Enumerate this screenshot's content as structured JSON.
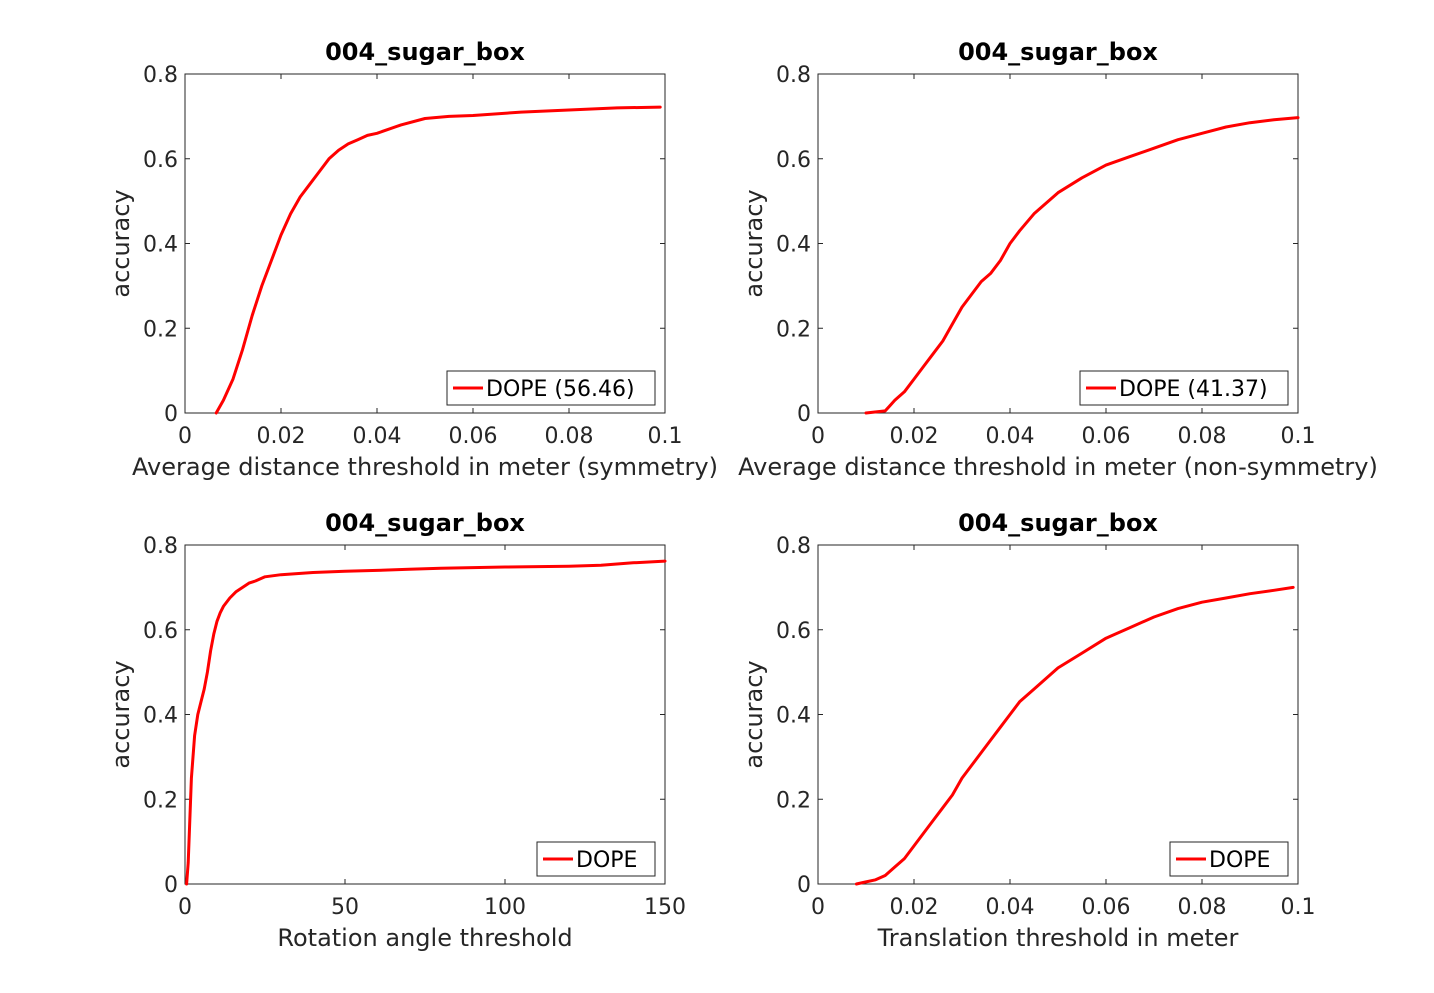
{
  "chart_data": [
    {
      "type": "line",
      "title": "004_sugar_box",
      "xlabel": "Average distance threshold in meter (symmetry)",
      "ylabel": "accuracy",
      "xlim": [
        0,
        0.1
      ],
      "ylim": [
        0,
        0.8
      ],
      "xticks": [
        "0",
        "0.02",
        "0.04",
        "0.06",
        "0.08",
        "0.1"
      ],
      "yticks": [
        "0",
        "0.2",
        "0.4",
        "0.6",
        "0.8"
      ],
      "legend_position": "bottom-right",
      "color": "#ff0000",
      "series": [
        {
          "name": "DOPE (56.46)",
          "x": [
            0.0065,
            0.008,
            0.01,
            0.012,
            0.014,
            0.016,
            0.018,
            0.02,
            0.022,
            0.024,
            0.026,
            0.028,
            0.03,
            0.032,
            0.034,
            0.036,
            0.038,
            0.04,
            0.045,
            0.05,
            0.055,
            0.06,
            0.07,
            0.08,
            0.09,
            0.099
          ],
          "y": [
            0.0,
            0.03,
            0.08,
            0.15,
            0.23,
            0.3,
            0.36,
            0.42,
            0.47,
            0.51,
            0.54,
            0.57,
            0.6,
            0.62,
            0.635,
            0.645,
            0.655,
            0.66,
            0.68,
            0.695,
            0.7,
            0.702,
            0.71,
            0.715,
            0.72,
            0.722
          ]
        }
      ]
    },
    {
      "type": "line",
      "title": "004_sugar_box",
      "xlabel": "Average distance threshold in meter (non-symmetry)",
      "ylabel": "accuracy",
      "xlim": [
        0,
        0.1
      ],
      "ylim": [
        0,
        0.8
      ],
      "xticks": [
        "0",
        "0.02",
        "0.04",
        "0.06",
        "0.08",
        "0.1"
      ],
      "yticks": [
        "0",
        "0.2",
        "0.4",
        "0.6",
        "0.8"
      ],
      "legend_position": "bottom-right",
      "color": "#ff0000",
      "series": [
        {
          "name": "DOPE (41.37)",
          "x": [
            0.01,
            0.014,
            0.016,
            0.018,
            0.02,
            0.022,
            0.024,
            0.026,
            0.028,
            0.03,
            0.032,
            0.034,
            0.036,
            0.038,
            0.04,
            0.042,
            0.045,
            0.05,
            0.055,
            0.06,
            0.065,
            0.07,
            0.075,
            0.08,
            0.085,
            0.09,
            0.095,
            0.1
          ],
          "y": [
            0.0,
            0.005,
            0.03,
            0.05,
            0.08,
            0.11,
            0.14,
            0.17,
            0.21,
            0.25,
            0.28,
            0.31,
            0.33,
            0.36,
            0.4,
            0.43,
            0.47,
            0.52,
            0.555,
            0.585,
            0.605,
            0.625,
            0.645,
            0.66,
            0.675,
            0.685,
            0.692,
            0.697
          ]
        }
      ]
    },
    {
      "type": "line",
      "title": "004_sugar_box",
      "xlabel": "Rotation angle threshold",
      "ylabel": "accuracy",
      "xlim": [
        0,
        150
      ],
      "ylim": [
        0,
        0.8
      ],
      "xticks": [
        "0",
        "50",
        "100",
        "150"
      ],
      "yticks": [
        "0",
        "0.2",
        "0.4",
        "0.6",
        "0.8"
      ],
      "legend_position": "bottom-right",
      "color": "#ff0000",
      "series": [
        {
          "name": "DOPE",
          "x": [
            0.5,
            1,
            1.5,
            2,
            3,
            4,
            5,
            6,
            7,
            8,
            9,
            10,
            11,
            12,
            14,
            16,
            18,
            20,
            22,
            25,
            30,
            40,
            50,
            60,
            70,
            80,
            100,
            120,
            130,
            140,
            150
          ],
          "y": [
            0.0,
            0.05,
            0.15,
            0.25,
            0.35,
            0.4,
            0.43,
            0.46,
            0.5,
            0.55,
            0.59,
            0.62,
            0.64,
            0.655,
            0.675,
            0.69,
            0.7,
            0.71,
            0.715,
            0.725,
            0.73,
            0.735,
            0.738,
            0.74,
            0.743,
            0.745,
            0.748,
            0.75,
            0.752,
            0.758,
            0.762
          ]
        }
      ]
    },
    {
      "type": "line",
      "title": "004_sugar_box",
      "xlabel": "Translation threshold in meter",
      "ylabel": "accuracy",
      "xlim": [
        0,
        0.1
      ],
      "ylim": [
        0,
        0.8
      ],
      "xticks": [
        "0",
        "0.02",
        "0.04",
        "0.06",
        "0.08",
        "0.1"
      ],
      "yticks": [
        "0",
        "0.2",
        "0.4",
        "0.6",
        "0.8"
      ],
      "legend_position": "bottom-right",
      "color": "#ff0000",
      "series": [
        {
          "name": "DOPE",
          "x": [
            0.008,
            0.01,
            0.012,
            0.014,
            0.016,
            0.018,
            0.02,
            0.022,
            0.024,
            0.026,
            0.028,
            0.03,
            0.032,
            0.034,
            0.036,
            0.038,
            0.04,
            0.042,
            0.045,
            0.05,
            0.055,
            0.06,
            0.065,
            0.07,
            0.075,
            0.08,
            0.085,
            0.09,
            0.095,
            0.099
          ],
          "y": [
            0.0,
            0.005,
            0.01,
            0.02,
            0.04,
            0.06,
            0.09,
            0.12,
            0.15,
            0.18,
            0.21,
            0.25,
            0.28,
            0.31,
            0.34,
            0.37,
            0.4,
            0.43,
            0.46,
            0.51,
            0.545,
            0.58,
            0.605,
            0.63,
            0.65,
            0.665,
            0.675,
            0.685,
            0.693,
            0.7
          ]
        }
      ]
    }
  ]
}
